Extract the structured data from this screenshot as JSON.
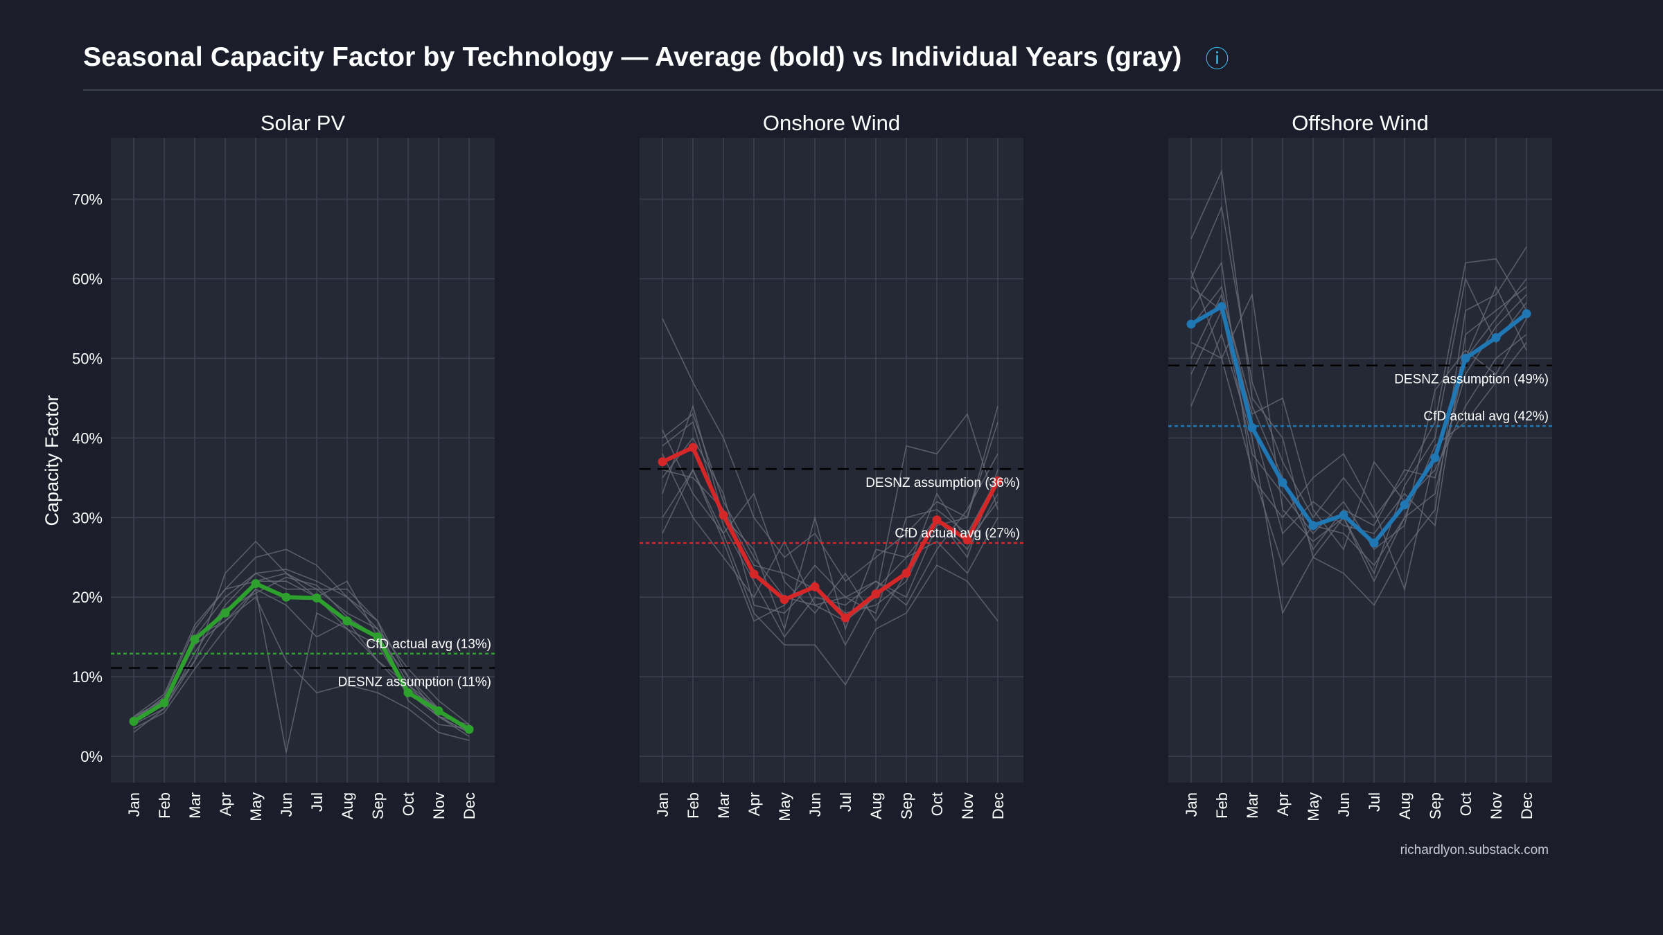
{
  "header": {
    "title": "Seasonal Capacity Factor by Technology — Average (bold) vs Individual Years (gray)",
    "info_icon": "info-icon"
  },
  "footer": {
    "credit": "richardlyon.substack.com"
  },
  "colors": {
    "background": "#1b1e2a",
    "panel": "#252835",
    "grid": "#3d4250",
    "gray_lines": "#6b6f7b",
    "solar": "#2ea02e",
    "onshore": "#d62728",
    "offshore": "#1f77b4",
    "desnz": "#000000"
  },
  "chart_data": {
    "type": "line",
    "ylabel": "Capacity Factor",
    "ylim": [
      -0.033,
      0.777
    ],
    "yticks": [
      0,
      0.1,
      0.2,
      0.3,
      0.4,
      0.5,
      0.6,
      0.7
    ],
    "ytick_labels": [
      "0%",
      "10%",
      "20%",
      "30%",
      "40%",
      "50%",
      "60%",
      "70%"
    ],
    "categories": [
      "Jan",
      "Feb",
      "Mar",
      "Apr",
      "May",
      "Jun",
      "Jul",
      "Aug",
      "Sep",
      "Oct",
      "Nov",
      "Dec"
    ],
    "panels": [
      {
        "title": "Solar PV",
        "average": [
          0.044,
          0.067,
          0.147,
          0.18,
          0.217,
          0.2,
          0.199,
          0.17,
          0.15,
          0.08,
          0.057,
          0.034
        ],
        "years": [
          [
            0.045,
            0.075,
            0.16,
            0.21,
            0.25,
            0.26,
            0.24,
            0.2,
            0.17,
            0.1,
            0.06,
            0.03
          ],
          [
            0.04,
            0.06,
            0.13,
            0.19,
            0.23,
            0.235,
            0.22,
            0.2,
            0.16,
            0.09,
            0.05,
            0.03
          ],
          [
            0.045,
            0.065,
            0.14,
            0.17,
            0.21,
            0.005,
            0.18,
            0.16,
            0.14,
            0.08,
            0.05,
            0.03
          ],
          [
            0.05,
            0.07,
            0.15,
            0.17,
            0.2,
            0.12,
            0.08,
            0.09,
            0.08,
            0.06,
            0.03,
            0.02
          ],
          [
            0.035,
            0.055,
            0.11,
            0.16,
            0.21,
            0.19,
            0.15,
            0.17,
            0.12,
            0.08,
            0.05,
            0.025
          ],
          [
            0.048,
            0.072,
            0.15,
            0.2,
            0.23,
            0.21,
            0.21,
            0.18,
            0.16,
            0.11,
            0.07,
            0.04
          ],
          [
            0.042,
            0.068,
            0.12,
            0.23,
            0.27,
            0.23,
            0.21,
            0.21,
            0.17,
            0.07,
            0.04,
            0.035
          ],
          [
            0.03,
            0.06,
            0.12,
            0.18,
            0.22,
            0.22,
            0.2,
            0.16,
            0.12,
            0.09,
            0.06,
            0.03
          ],
          [
            0.05,
            0.078,
            0.165,
            0.21,
            0.22,
            0.23,
            0.2,
            0.22,
            0.15,
            0.1,
            0.05,
            0.04
          ],
          [
            0.044,
            0.066,
            0.145,
            0.185,
            0.205,
            0.225,
            0.215,
            0.175,
            0.15,
            0.085,
            0.06,
            0.032
          ]
        ],
        "cfd": {
          "value": 0.129,
          "label": "CfD actual avg (13%)"
        },
        "desnz": {
          "value": 0.111,
          "label": "DESNZ assumption (11%)"
        }
      },
      {
        "title": "Onshore Wind",
        "average": [
          0.37,
          0.388,
          0.303,
          0.229,
          0.197,
          0.213,
          0.174,
          0.204,
          0.23,
          0.297,
          0.272,
          0.346
        ],
        "years": [
          [
            0.55,
            0.47,
            0.4,
            0.3,
            0.25,
            0.28,
            0.22,
            0.25,
            0.28,
            0.32,
            0.3,
            0.42
          ],
          [
            0.41,
            0.33,
            0.28,
            0.18,
            0.14,
            0.14,
            0.09,
            0.16,
            0.18,
            0.24,
            0.22,
            0.17
          ],
          [
            0.4,
            0.43,
            0.32,
            0.25,
            0.2,
            0.19,
            0.17,
            0.2,
            0.39,
            0.38,
            0.43,
            0.31
          ],
          [
            0.33,
            0.44,
            0.3,
            0.26,
            0.16,
            0.3,
            0.16,
            0.26,
            0.25,
            0.3,
            0.25,
            0.36
          ],
          [
            0.28,
            0.36,
            0.28,
            0.33,
            0.22,
            0.18,
            0.23,
            0.17,
            0.23,
            0.33,
            0.27,
            0.32
          ],
          [
            0.38,
            0.3,
            0.25,
            0.2,
            0.27,
            0.19,
            0.2,
            0.22,
            0.2,
            0.29,
            0.3,
            0.44
          ],
          [
            0.35,
            0.4,
            0.33,
            0.19,
            0.18,
            0.22,
            0.14,
            0.21,
            0.25,
            0.27,
            0.23,
            0.3
          ],
          [
            0.3,
            0.36,
            0.27,
            0.17,
            0.19,
            0.24,
            0.2,
            0.18,
            0.3,
            0.31,
            0.28,
            0.35
          ],
          [
            0.39,
            0.42,
            0.29,
            0.22,
            0.15,
            0.2,
            0.19,
            0.22,
            0.19,
            0.26,
            0.31,
            0.38
          ],
          [
            0.36,
            0.35,
            0.31,
            0.24,
            0.23,
            0.21,
            0.18,
            0.19,
            0.22,
            0.3,
            0.26,
            0.33
          ]
        ],
        "cfd": {
          "value": 0.268,
          "label": "CfD actual avg (27%)"
        },
        "desnz": {
          "value": 0.361,
          "label": "DESNZ assumption (36%)"
        }
      },
      {
        "title": "Offshore Wind",
        "average": [
          0.543,
          0.565,
          0.413,
          0.344,
          0.29,
          0.303,
          0.268,
          0.316,
          0.375,
          0.5,
          0.526,
          0.556
        ],
        "years": [
          [
            0.65,
            0.735,
            0.45,
            0.4,
            0.25,
            0.3,
            0.22,
            0.3,
            0.33,
            0.5,
            0.55,
            0.6
          ],
          [
            0.6,
            0.69,
            0.47,
            0.37,
            0.3,
            0.35,
            0.3,
            0.35,
            0.42,
            0.62,
            0.625,
            0.56
          ],
          [
            0.44,
            0.53,
            0.4,
            0.18,
            0.25,
            0.23,
            0.19,
            0.26,
            0.31,
            0.56,
            0.58,
            0.64
          ],
          [
            0.56,
            0.62,
            0.35,
            0.3,
            0.35,
            0.38,
            0.31,
            0.21,
            0.38,
            0.5,
            0.59,
            0.51
          ],
          [
            0.52,
            0.5,
            0.58,
            0.31,
            0.27,
            0.3,
            0.23,
            0.34,
            0.4,
            0.6,
            0.52,
            0.57
          ],
          [
            0.48,
            0.56,
            0.43,
            0.45,
            0.31,
            0.26,
            0.37,
            0.32,
            0.36,
            0.44,
            0.5,
            0.53
          ],
          [
            0.59,
            0.56,
            0.38,
            0.33,
            0.28,
            0.32,
            0.26,
            0.29,
            0.46,
            0.51,
            0.48,
            0.55
          ],
          [
            0.54,
            0.59,
            0.42,
            0.28,
            0.32,
            0.29,
            0.28,
            0.33,
            0.29,
            0.53,
            0.56,
            0.59
          ],
          [
            0.61,
            0.5,
            0.36,
            0.24,
            0.29,
            0.28,
            0.24,
            0.3,
            0.39,
            0.42,
            0.47,
            0.52
          ],
          [
            0.5,
            0.58,
            0.44,
            0.35,
            0.26,
            0.31,
            0.29,
            0.36,
            0.35,
            0.48,
            0.54,
            0.58
          ]
        ],
        "cfd": {
          "value": 0.415,
          "label": "CfD actual avg (42%)"
        },
        "desnz": {
          "value": 0.491,
          "label": "DESNZ assumption (49%)"
        }
      }
    ]
  }
}
